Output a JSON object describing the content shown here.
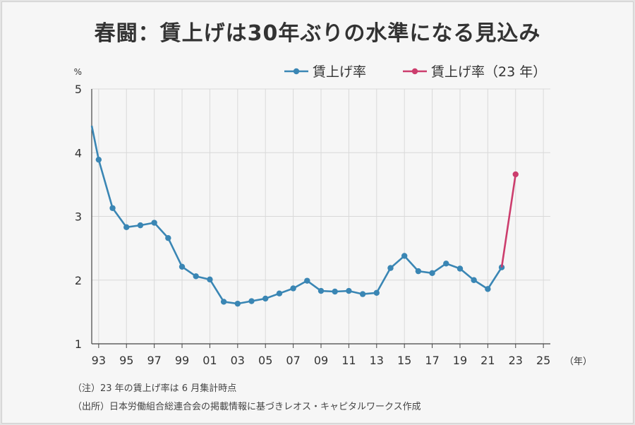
{
  "title": "春闘：賃上げは30年ぶりの水準になる見込み",
  "notes": [
    "（注）23 年の賃上げ率は 6 月集計時点",
    "（出所）日本労働組合総連合会の掲載情報に基づきレオス・キャピタルワークス作成"
  ],
  "colors": {
    "series_main": "#3a86b4",
    "series_forecast": "#cc3d6d",
    "grid": "#d9d9d9",
    "axis": "#444444",
    "text": "#333333"
  },
  "chart_data": {
    "type": "line",
    "title": "春闘：賃上げは30年ぶりの水準になる見込み",
    "ylabel": "%",
    "xlabel": "（年）",
    "ylim": [
      1,
      5
    ],
    "xlim": [
      1993,
      2025
    ],
    "yticks": [
      "1",
      "2",
      "3",
      "4",
      "5"
    ],
    "xticks": [
      "93",
      "95",
      "97",
      "99",
      "01",
      "03",
      "05",
      "07",
      "09",
      "11",
      "13",
      "15",
      "17",
      "19",
      "21",
      "23",
      "25"
    ],
    "xtick_values": [
      1993,
      1995,
      1997,
      1999,
      2001,
      2003,
      2005,
      2007,
      2009,
      2011,
      2013,
      2015,
      2017,
      2019,
      2021,
      2023,
      2025
    ],
    "grid": true,
    "legend": "top-right",
    "series": [
      {
        "name": "賃上げ率",
        "x": [
          1993,
          1994,
          1995,
          1996,
          1997,
          1998,
          1999,
          2000,
          2001,
          2002,
          2003,
          2004,
          2005,
          2006,
          2007,
          2008,
          2009,
          2010,
          2011,
          2012,
          2013,
          2014,
          2015,
          2016,
          2017,
          2018,
          2019,
          2020,
          2021,
          2022
        ],
        "values": [
          3.89,
          3.13,
          2.83,
          2.86,
          2.9,
          2.66,
          2.21,
          2.06,
          2.01,
          1.66,
          1.63,
          1.67,
          1.71,
          1.79,
          1.87,
          1.99,
          1.83,
          1.82,
          1.83,
          1.78,
          1.8,
          2.19,
          2.38,
          2.14,
          2.11,
          2.26,
          2.18,
          2.0,
          1.86,
          2.2
        ]
      },
      {
        "name": "賃上げ率（23 年）",
        "x": [
          2022,
          2023
        ],
        "values": [
          2.2,
          3.66
        ]
      }
    ]
  }
}
